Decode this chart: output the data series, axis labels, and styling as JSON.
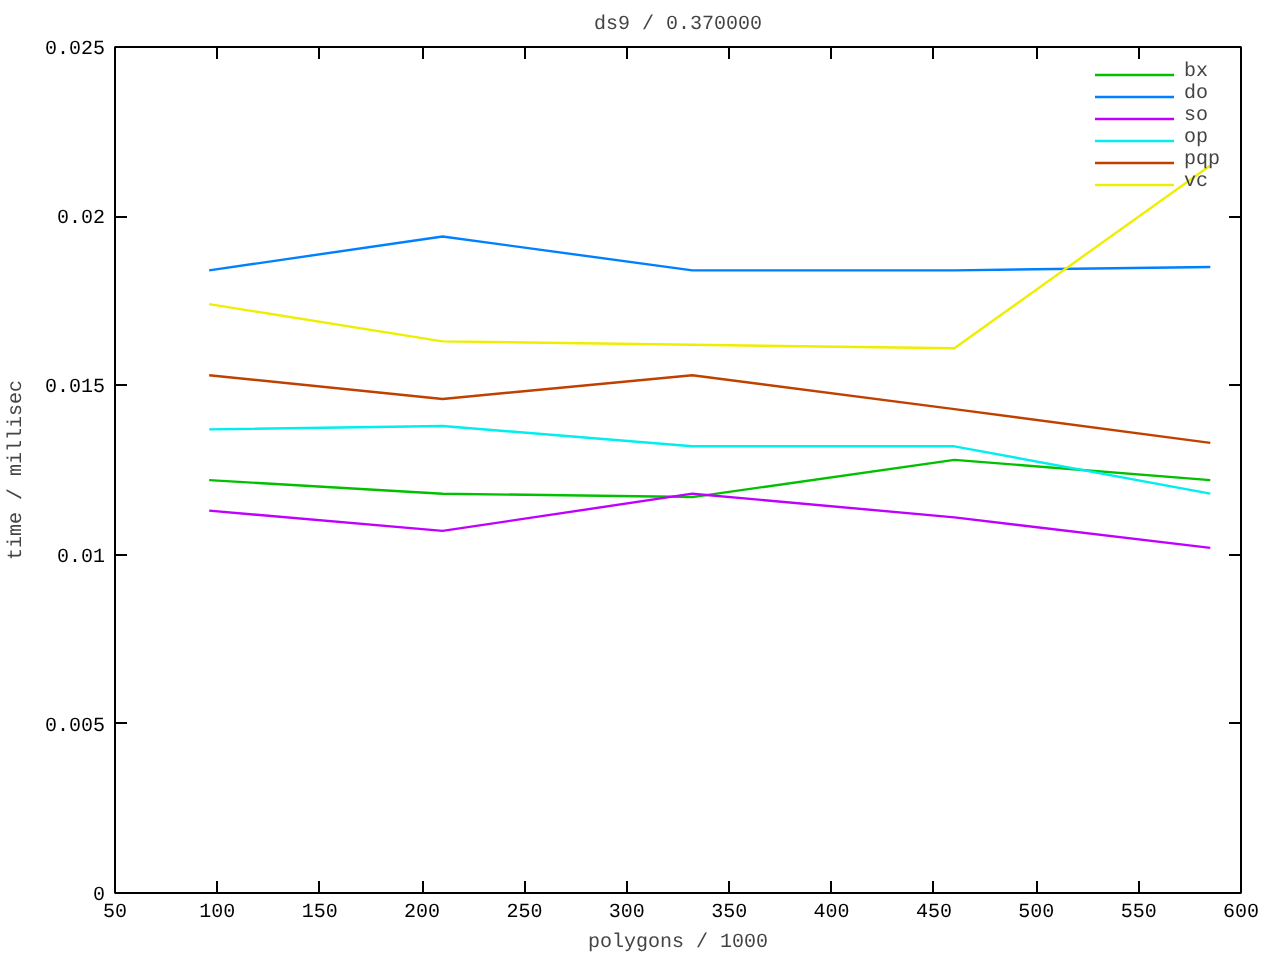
{
  "chart_data": {
    "type": "line",
    "title": "ds9 / 0.370000",
    "xlabel": "polygons / 1000",
    "ylabel": "time / millisec",
    "x": [
      96,
      210,
      332,
      460,
      585
    ],
    "series": [
      {
        "name": "bx",
        "color": "#00c000",
        "values": [
          0.0122,
          0.0118,
          0.0117,
          0.0128,
          0.0122
        ]
      },
      {
        "name": "do",
        "color": "#0080ff",
        "values": [
          0.0184,
          0.0194,
          0.0184,
          0.0184,
          0.0185
        ]
      },
      {
        "name": "so",
        "color": "#c000ff",
        "values": [
          0.0113,
          0.0107,
          0.0118,
          0.0111,
          0.0102
        ]
      },
      {
        "name": "op",
        "color": "#00eeee",
        "values": [
          0.0137,
          0.0138,
          0.0132,
          0.0132,
          0.0118
        ]
      },
      {
        "name": "pqp",
        "color": "#c04000",
        "values": [
          0.0153,
          0.0146,
          0.0153,
          0.0143,
          0.0133
        ]
      },
      {
        "name": "vc",
        "color": "#eeee00",
        "values": [
          0.0174,
          0.0163,
          0.0162,
          0.0161,
          0.0215
        ]
      }
    ],
    "xlim": [
      50,
      600
    ],
    "ylim": [
      0,
      0.025
    ],
    "xticks": [
      50,
      100,
      150,
      200,
      250,
      300,
      350,
      400,
      450,
      500,
      550,
      600
    ],
    "yticks": [
      0,
      0.005,
      0.01,
      0.015,
      0.02,
      0.025
    ],
    "grid": false,
    "legend": "top right",
    "marker": "none",
    "line_style": "solid"
  }
}
